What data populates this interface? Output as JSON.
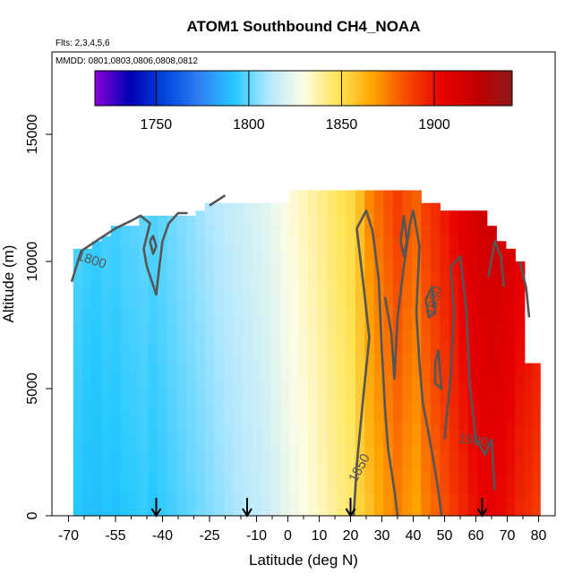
{
  "chart_data": {
    "type": "heatmap",
    "title": "ATOM1 Southbound CH4_NOAA",
    "subtitle_flights": "Flts: 2,3,4,5,6",
    "subtitle_dates": "MMDD: 0801,0803,0806,0808,0812",
    "xlabel": "Latitude (deg N)",
    "ylabel": "Altitude (m)",
    "xlim": [
      -70,
      80
    ],
    "ylim": [
      0,
      17500
    ],
    "x_ticks": [
      -70,
      -55,
      -40,
      -25,
      -10,
      0,
      10,
      20,
      30,
      40,
      50,
      60,
      70,
      80
    ],
    "y_ticks": [
      0,
      5000,
      10000,
      15000
    ],
    "colorbar": {
      "range": [
        1717,
        1942
      ],
      "ticks": [
        1750,
        1800,
        1850,
        1900
      ],
      "palette": [
        "#8a00d8",
        "#0000b4",
        "#0044dd",
        "#2f7ff4",
        "#24c8ff",
        "#b4e8ff",
        "#fdfde4",
        "#ffe455",
        "#ffa300",
        "#f64900",
        "#e80000",
        "#c40000",
        "#8b1a1a"
      ]
    },
    "contour_levels": [
      1800,
      1850,
      1900
    ],
    "contour_labels": [
      "1800",
      "1850",
      "1850",
      "1900"
    ],
    "flight_markers_lat": [
      -42,
      -13,
      20,
      62
    ],
    "columns": [
      {
        "lat": -67,
        "top": 10500,
        "value": 1795
      },
      {
        "lat": -64,
        "top": 10500,
        "value": 1793
      },
      {
        "lat": -61,
        "top": 10800,
        "value": 1792
      },
      {
        "lat": -58,
        "top": 11000,
        "value": 1794
      },
      {
        "lat": -55,
        "top": 11400,
        "value": 1793
      },
      {
        "lat": -52,
        "top": 11400,
        "value": 1795
      },
      {
        "lat": -49,
        "top": 11400,
        "value": 1796
      },
      {
        "lat": -46,
        "top": 11800,
        "value": 1797
      },
      {
        "lat": -43,
        "top": 11800,
        "value": 1795
      },
      {
        "lat": -40,
        "top": 11800,
        "value": 1797
      },
      {
        "lat": -37,
        "top": 11800,
        "value": 1799
      },
      {
        "lat": -34,
        "top": 11800,
        "value": 1801
      },
      {
        "lat": -31,
        "top": 11800,
        "value": 1803
      },
      {
        "lat": -28,
        "top": 12000,
        "value": 1805
      },
      {
        "lat": -25,
        "top": 12300,
        "value": 1807
      },
      {
        "lat": -22,
        "top": 12300,
        "value": 1809
      },
      {
        "lat": -19,
        "top": 12300,
        "value": 1811
      },
      {
        "lat": -16,
        "top": 12300,
        "value": 1813
      },
      {
        "lat": -13,
        "top": 12300,
        "value": 1815
      },
      {
        "lat": -10,
        "top": 12300,
        "value": 1817
      },
      {
        "lat": -7,
        "top": 12300,
        "value": 1819
      },
      {
        "lat": -4,
        "top": 12300,
        "value": 1822
      },
      {
        "lat": -1,
        "top": 12300,
        "value": 1826
      },
      {
        "lat": 2,
        "top": 12800,
        "value": 1829
      },
      {
        "lat": 5,
        "top": 12800,
        "value": 1832
      },
      {
        "lat": 8,
        "top": 12800,
        "value": 1835
      },
      {
        "lat": 11,
        "top": 12800,
        "value": 1838
      },
      {
        "lat": 14,
        "top": 12800,
        "value": 1842
      },
      {
        "lat": 17,
        "top": 12800,
        "value": 1845
      },
      {
        "lat": 20,
        "top": 12800,
        "value": 1848
      },
      {
        "lat": 23,
        "top": 12800,
        "value": 1856
      },
      {
        "lat": 26,
        "top": 12800,
        "value": 1864
      },
      {
        "lat": 29,
        "top": 12800,
        "value": 1870
      },
      {
        "lat": 32,
        "top": 12800,
        "value": 1875
      },
      {
        "lat": 35,
        "top": 12800,
        "value": 1880
      },
      {
        "lat": 38,
        "top": 12800,
        "value": 1875
      },
      {
        "lat": 41,
        "top": 12800,
        "value": 1872
      },
      {
        "lat": 44,
        "top": 12300,
        "value": 1880
      },
      {
        "lat": 47,
        "top": 12300,
        "value": 1885
      },
      {
        "lat": 50,
        "top": 12000,
        "value": 1890
      },
      {
        "lat": 53,
        "top": 12000,
        "value": 1895
      },
      {
        "lat": 56,
        "top": 12000,
        "value": 1900
      },
      {
        "lat": 59,
        "top": 12000,
        "value": 1905
      },
      {
        "lat": 62,
        "top": 12000,
        "value": 1908
      },
      {
        "lat": 65,
        "top": 11400,
        "value": 1910
      },
      {
        "lat": 68,
        "top": 10800,
        "value": 1908
      },
      {
        "lat": 71,
        "top": 10500,
        "value": 1905
      },
      {
        "lat": 74,
        "top": 10000,
        "value": 1900
      },
      {
        "lat": 77,
        "top": 6000,
        "value": 1898
      },
      {
        "lat": 79,
        "top": 6000,
        "value": 1895
      }
    ]
  }
}
